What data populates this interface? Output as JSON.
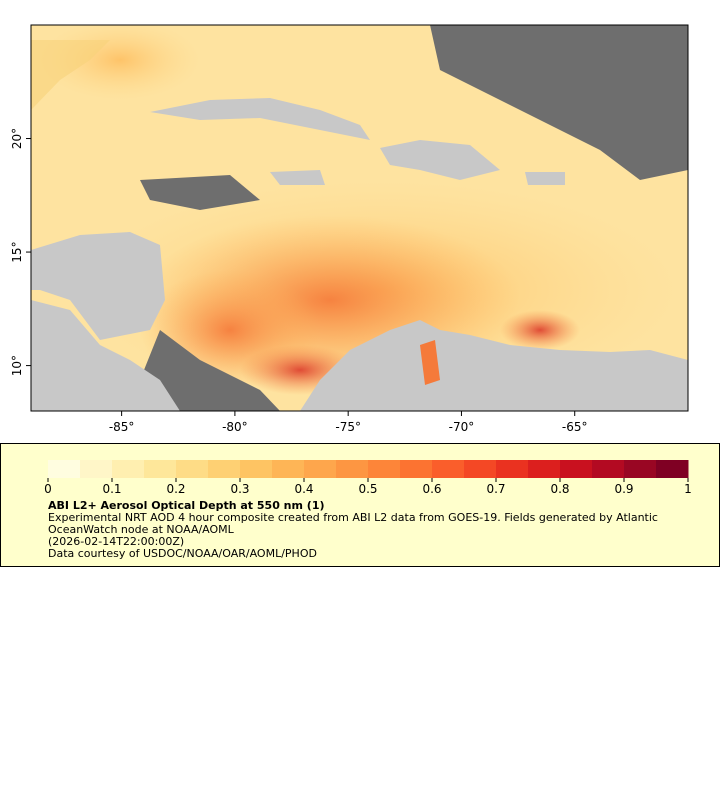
{
  "map": {
    "xlim": [
      -89,
      -60
    ],
    "ylim": [
      8,
      25
    ],
    "xticks": [
      {
        "value": -85,
        "label": "-85°"
      },
      {
        "value": -80,
        "label": "-80°"
      },
      {
        "value": -75,
        "label": "-75°"
      },
      {
        "value": -70,
        "label": "-70°"
      },
      {
        "value": -65,
        "label": "-65°"
      }
    ],
    "yticks": [
      {
        "value": 10,
        "label": "10°"
      },
      {
        "value": 15,
        "label": "15°"
      },
      {
        "value": 20,
        "label": "20°"
      }
    ]
  },
  "colorbar": {
    "lim": [
      0,
      1
    ],
    "ticks": [
      0,
      0.1,
      0.2,
      0.3,
      0.4,
      0.5,
      0.6,
      0.7,
      0.8,
      0.9,
      1
    ],
    "colors": [
      "#fffde0",
      "#fff6c8",
      "#ffefb0",
      "#fee79a",
      "#fedc86",
      "#fed073",
      "#fec463",
      "#feb556",
      "#fea64c",
      "#fd9642",
      "#fd8539",
      "#fc7331",
      "#fa5e2b",
      "#f44825",
      "#ea3220",
      "#dc1f1e",
      "#c9111f",
      "#b30a22",
      "#990623",
      "#7f0023"
    ]
  },
  "legend": {
    "title": "ABI L2+ Aerosol Optical Depth at 550 nm (1)",
    "description": "Experimental NRT AOD 4 hour composite created from ABI L2 data from GOES-19. Fields generated by Atlantic OceanWatch node at NOAA/AOML",
    "time": "(2026-02-14T22:00:00Z)",
    "credit": "Data courtesy of USDOC/NOAA/OAR/AOML/PHOD"
  }
}
